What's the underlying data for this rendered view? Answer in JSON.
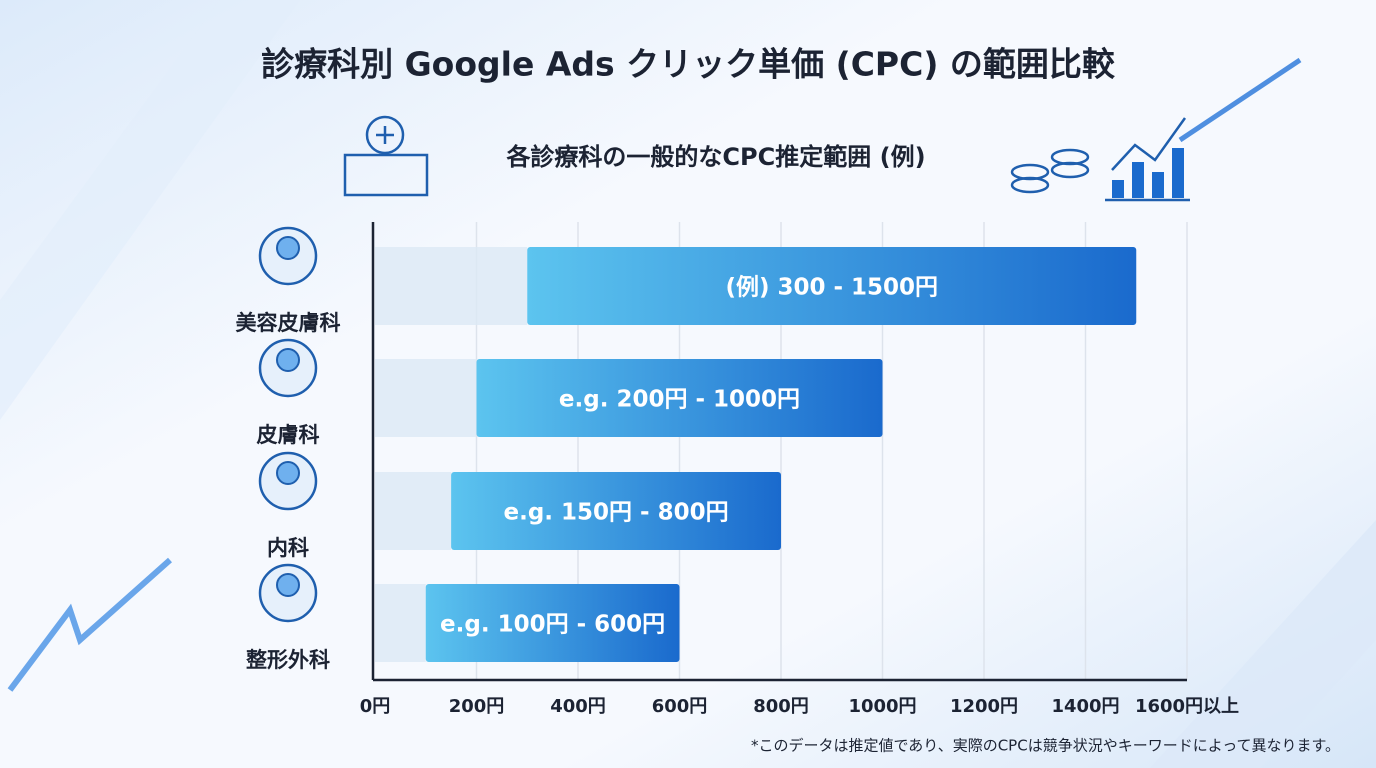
{
  "chart_data": {
    "type": "range",
    "title": "診療科別 Google Ads クリック単価 (CPC) の範囲比較",
    "subtitle": "各診療科の一般的なCPC推定範囲 (例)",
    "categories": [
      "美容皮膚科",
      "皮膚科",
      "内科",
      "整形外科"
    ],
    "values": [
      [
        300,
        1500
      ],
      [
        200,
        1000
      ],
      [
        150,
        800
      ],
      [
        100,
        600
      ]
    ],
    "value_labels": [
      "(例) 300 - 1500円",
      "e.g. 200円 - 1000円",
      "e.g. 150円 - 800円",
      "e.g. 100円 - 600円"
    ],
    "colors": [
      "#5cc4ef",
      "#1a6acd"
    ],
    "xlim": [
      0,
      1600
    ],
    "xticks": [
      {
        "value": 0,
        "label": "0円"
      },
      {
        "value": 200,
        "label": "200円"
      },
      {
        "value": 400,
        "label": "400円"
      },
      {
        "value": 600,
        "label": "600円"
      },
      {
        "value": 800,
        "label": "800円"
      },
      {
        "value": 1000,
        "label": "1000円"
      },
      {
        "value": 1200,
        "label": "1200円"
      },
      {
        "value": 1400,
        "label": "1400円"
      },
      {
        "value": 1600,
        "label": "1600円以上"
      }
    ],
    "grid": true,
    "footnote": "*このデータは推定値であり、実際のCPCは競争状況やキーワードによって異なります。"
  }
}
